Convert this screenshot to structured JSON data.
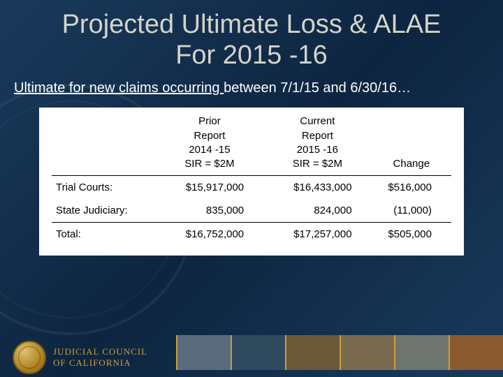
{
  "title_line1": "Projected Ultimate Loss & ALAE",
  "title_line2": "For 2015 -16",
  "subtitle_underlined": "Ultimate for new claims occurring ",
  "subtitle_rest": "between 7/1/15 and 6/30/16…",
  "table": {
    "headers": {
      "prior_l1": "Prior",
      "prior_l2": "Report",
      "prior_l3": "2014 -15",
      "prior_l4": "SIR = $2M",
      "current_l1": "Current",
      "current_l2": "Report",
      "current_l3": "2015 -16",
      "current_l4": "SIR = $2M",
      "change": "Change"
    },
    "rows": {
      "r0": {
        "label": "Trial Courts:",
        "prior": "$15,917,000",
        "current": "$16,433,000",
        "change": "$516,000"
      },
      "r1": {
        "label": "State Judiciary:",
        "prior": "835,000",
        "current": "824,000",
        "change": "(11,000)"
      },
      "r2": {
        "label": "Total:",
        "prior": "$16,752,000",
        "current": "$17,257,000",
        "change": "$505,000"
      }
    }
  },
  "footer": {
    "org_line1": "JUDICIAL COUNCIL",
    "org_line2": "OF CALIFORNIA",
    "tile_colors": [
      "#5a6b7d",
      "#2f4a5e",
      "#6a5838",
      "#7a6a50",
      "#6f766f",
      "#8a5a2f"
    ]
  },
  "colors": {
    "title": "#d4d4c8",
    "accent": "#c9a03a",
    "bg_from": "#1a3a5c",
    "bg_to": "#0d2540"
  }
}
